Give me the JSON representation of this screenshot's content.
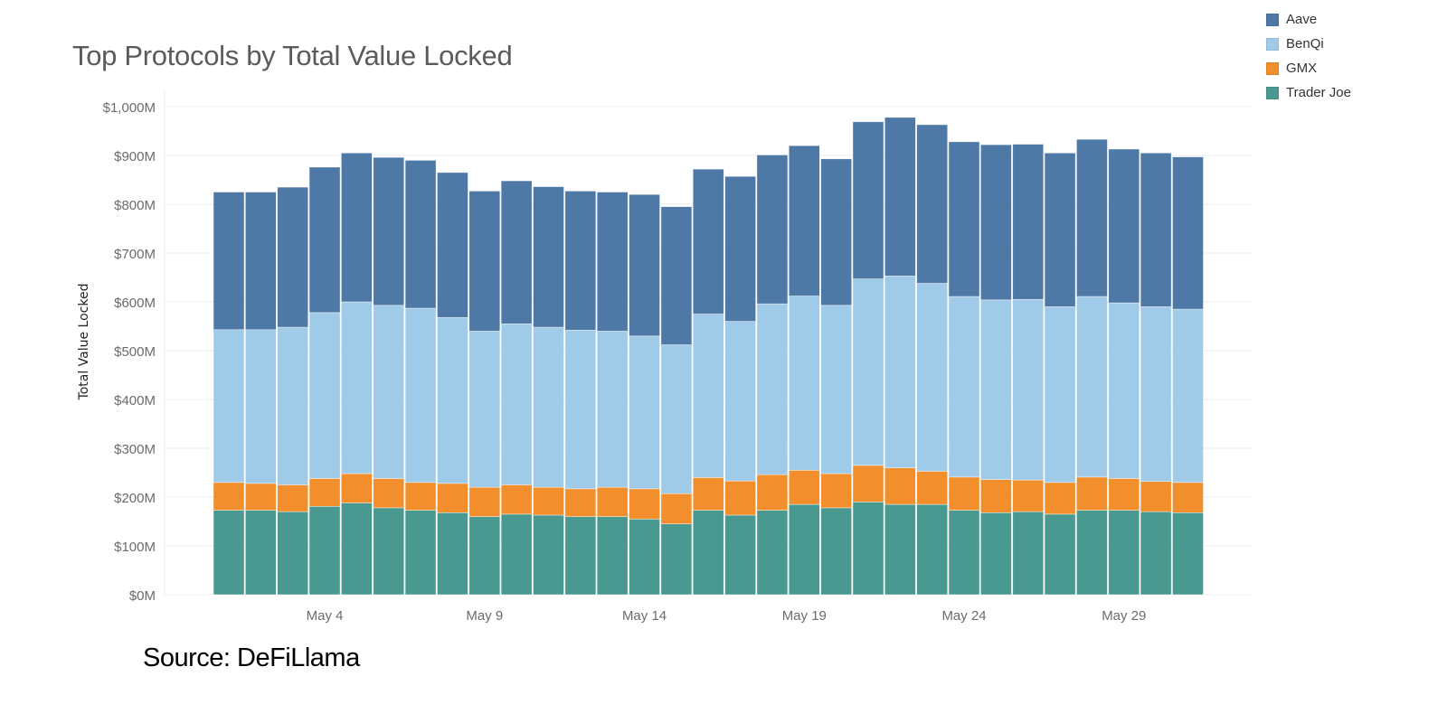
{
  "chart_data": {
    "type": "bar",
    "stacked": true,
    "title": "Top Protocols by Total Value Locked",
    "xlabel": "",
    "ylabel": "Total Value Locked",
    "ylim": [
      0,
      1000
    ],
    "yticks": [
      0,
      100,
      200,
      300,
      400,
      500,
      600,
      700,
      800,
      900,
      1000
    ],
    "ytick_labels": [
      "$0M",
      "$100M",
      "$200M",
      "$300M",
      "$400M",
      "$500M",
      "$600M",
      "$700M",
      "$800M",
      "$900M",
      "$1,000M"
    ],
    "x": [
      "May 1",
      "May 2",
      "May 3",
      "May 4",
      "May 5",
      "May 6",
      "May 7",
      "May 8",
      "May 9",
      "May 10",
      "May 11",
      "May 12",
      "May 13",
      "May 14",
      "May 15",
      "May 16",
      "May 17",
      "May 18",
      "May 19",
      "May 20",
      "May 21",
      "May 22",
      "May 23",
      "May 24",
      "May 25",
      "May 26",
      "May 27",
      "May 28",
      "May 29",
      "May 30",
      "May 31"
    ],
    "xtick_labels": [
      "May 4",
      "May 9",
      "May 14",
      "May 19",
      "May 24",
      "May 29"
    ],
    "grid": true,
    "legend_position": "top-right",
    "series": [
      {
        "name": "Trader Joe",
        "color": "#4a9991",
        "values": [
          173,
          173,
          170,
          181,
          188,
          178,
          173,
          168,
          160,
          165,
          163,
          160,
          160,
          155,
          145,
          173,
          163,
          173,
          185,
          178,
          190,
          185,
          185,
          173,
          168,
          170,
          165,
          173,
          173,
          170,
          168
        ]
      },
      {
        "name": "GMX",
        "color": "#f28e2b",
        "values": [
          57,
          55,
          55,
          57,
          60,
          60,
          57,
          60,
          60,
          60,
          57,
          57,
          60,
          62,
          62,
          67,
          70,
          73,
          70,
          70,
          75,
          75,
          68,
          68,
          68,
          65,
          65,
          68,
          65,
          62,
          62
        ]
      },
      {
        "name": "BenQi",
        "color": "#a0cbe8",
        "values": [
          313,
          315,
          323,
          340,
          352,
          355,
          357,
          340,
          320,
          330,
          328,
          325,
          320,
          313,
          305,
          335,
          327,
          350,
          357,
          345,
          382,
          393,
          385,
          370,
          368,
          370,
          360,
          370,
          360,
          358,
          355
        ]
      },
      {
        "name": "Aave",
        "color": "#4e79a7",
        "values": [
          282,
          282,
          287,
          298,
          305,
          303,
          303,
          297,
          287,
          293,
          288,
          285,
          285,
          290,
          283,
          297,
          297,
          305,
          308,
          300,
          322,
          325,
          325,
          317,
          318,
          318,
          315,
          322,
          315,
          315,
          312
        ]
      }
    ],
    "legend_order": [
      "Aave",
      "BenQi",
      "GMX",
      "Trader Joe"
    ]
  },
  "source_note": "Source: DeFiLlama"
}
